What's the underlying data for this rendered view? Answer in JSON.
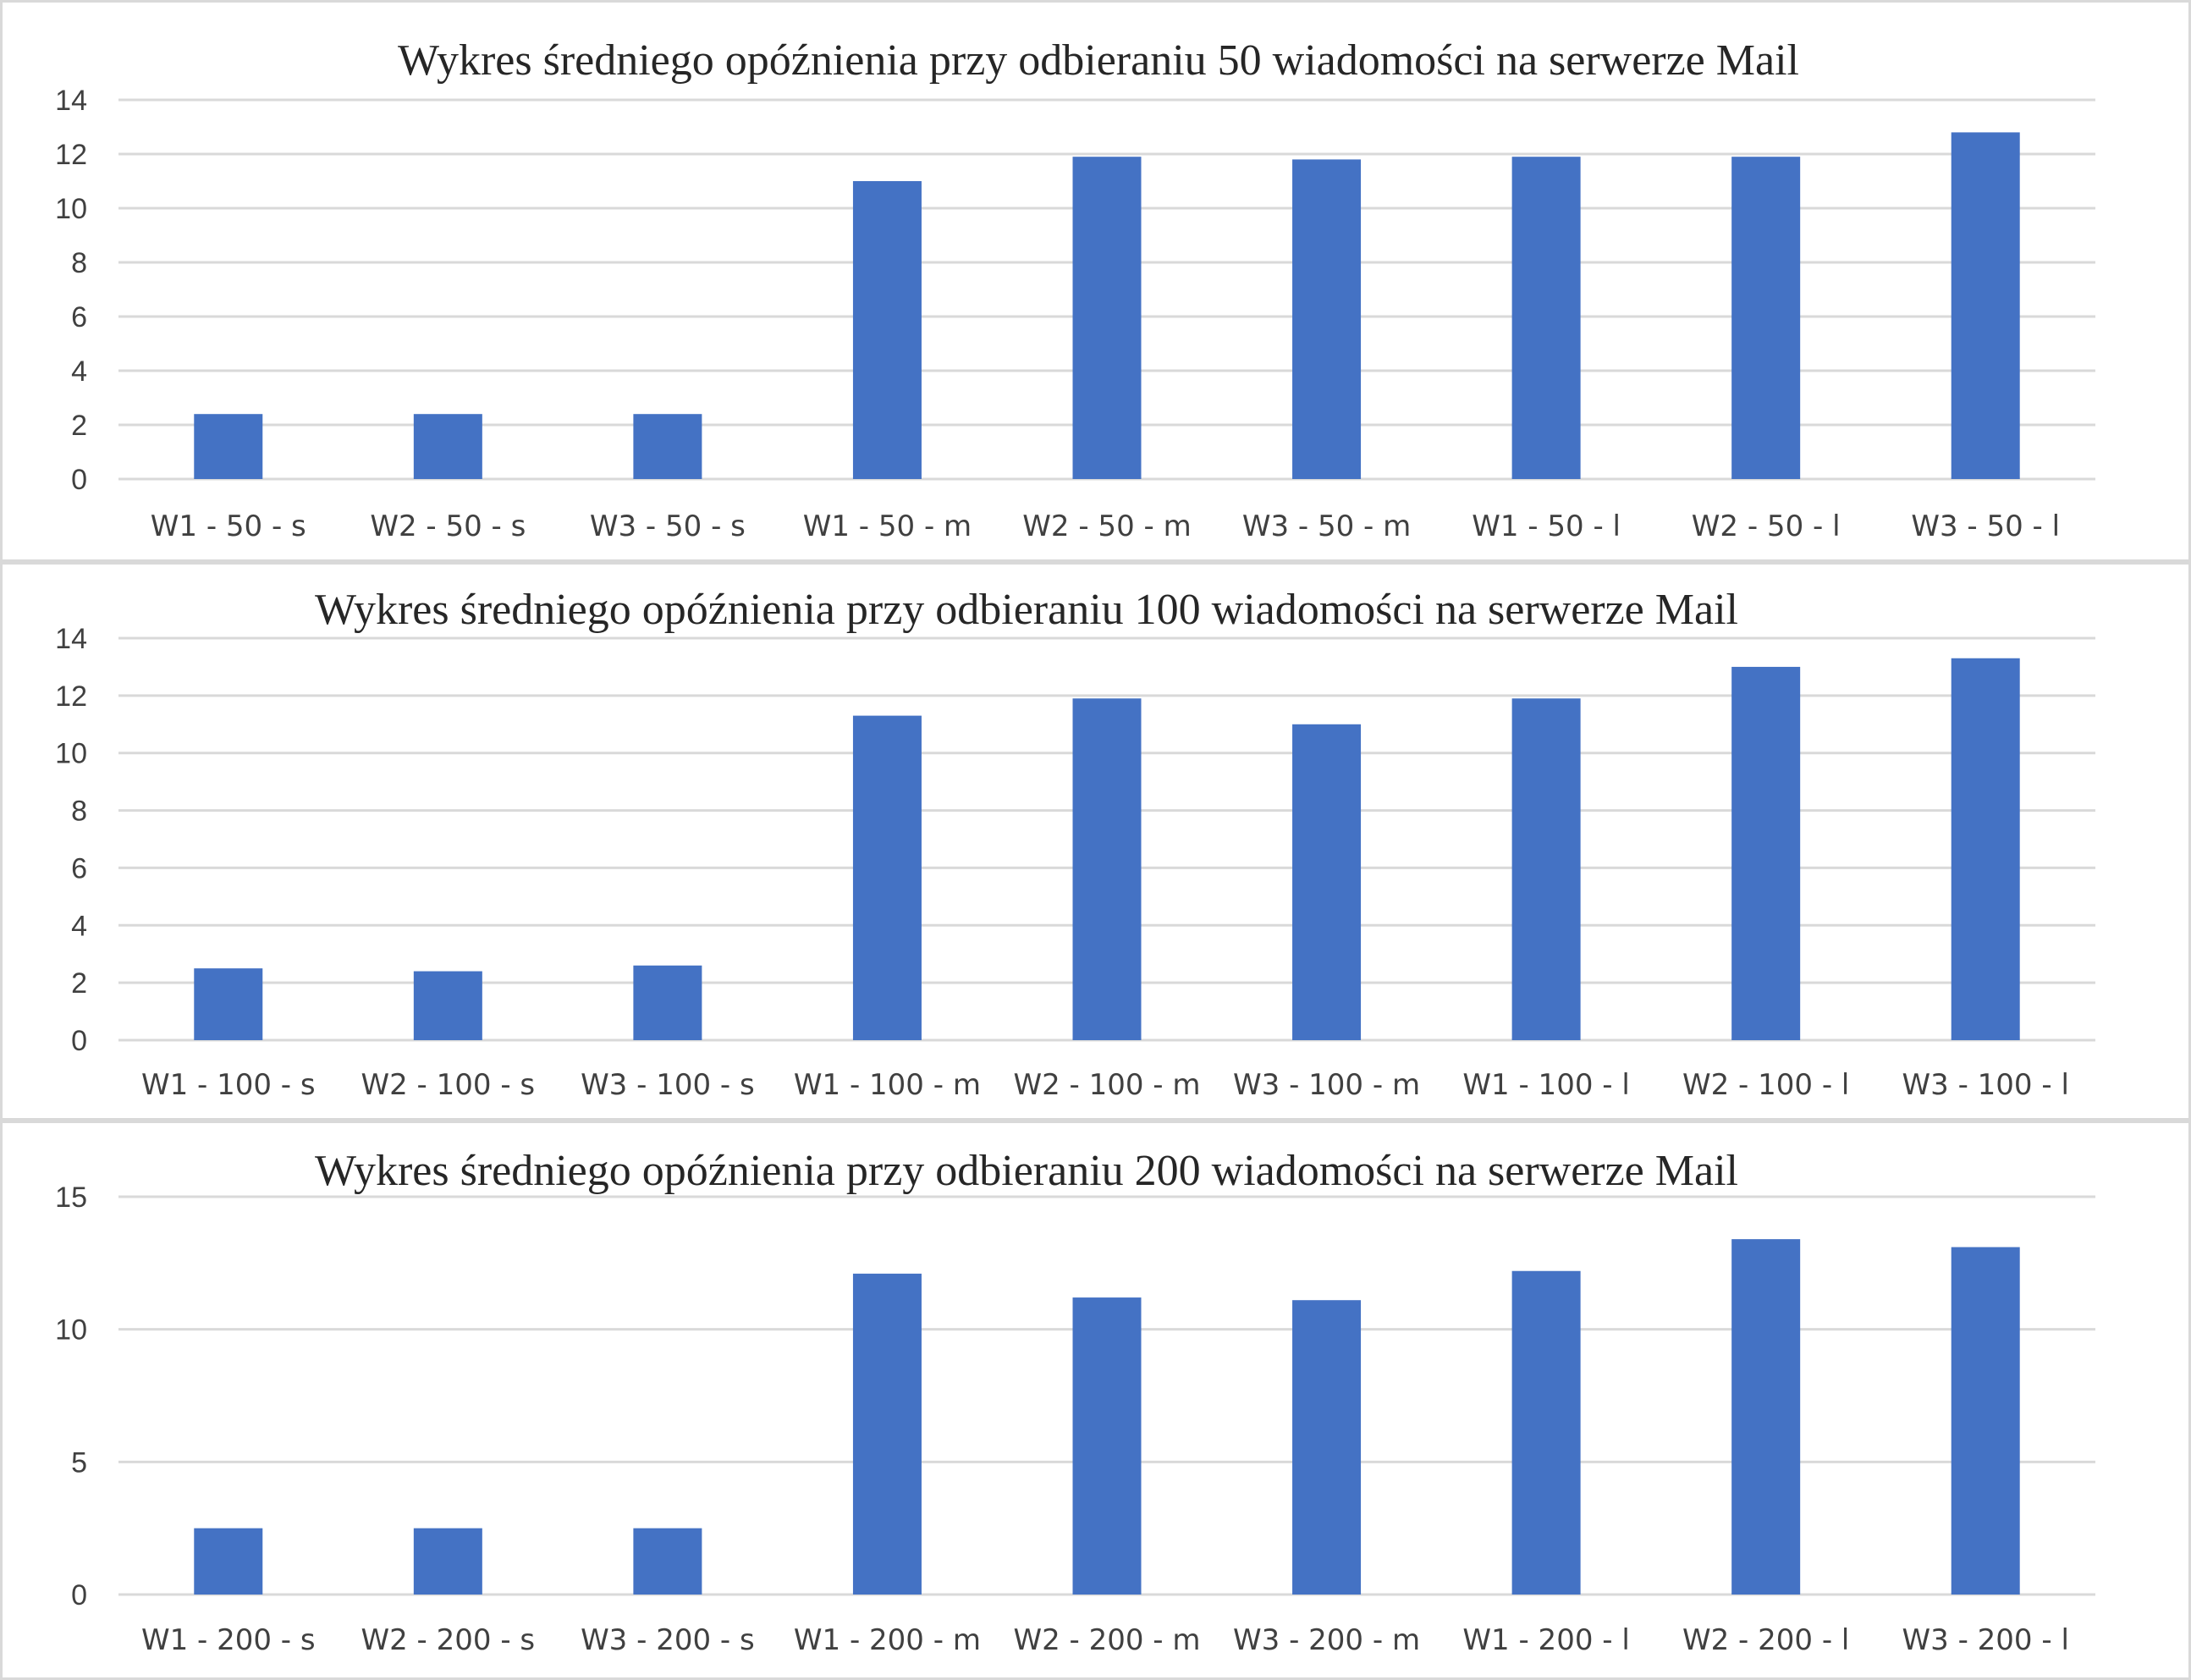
{
  "chart_data": [
    {
      "type": "bar",
      "title": "Wykres średniego opóźnienia przy odbieraniu 50 wiadomości na serwerze Mail",
      "categories": [
        "W1 - 50 - s",
        "W2 - 50 - s",
        "W3 - 50 - s",
        "W1 - 50 - m",
        "W2 - 50 - m",
        "W3 - 50 - m",
        "W1 - 50 - l",
        "W2 - 50 - l",
        "W3 - 50 - l"
      ],
      "values": [
        2.4,
        2.4,
        2.4,
        11.0,
        11.9,
        11.8,
        11.9,
        11.9,
        12.8
      ],
      "yticks": [
        "0",
        "2",
        "4",
        "6",
        "8",
        "10",
        "12",
        "14"
      ],
      "ylim": [
        0,
        14
      ],
      "grid": true,
      "color": "#4472c4"
    },
    {
      "type": "bar",
      "title": "Wykres średniego opóźnienia przy odbieraniu 100 wiadomości na serwerze Mail",
      "categories": [
        "W1 - 100 - s",
        "W2 - 100 - s",
        "W3 - 100 - s",
        "W1 - 100 - m",
        "W2 - 100 - m",
        "W3 - 100 - m",
        "W1 - 100 - l",
        "W2 - 100 - l",
        "W3 - 100 - l"
      ],
      "values": [
        2.5,
        2.4,
        2.6,
        11.3,
        11.9,
        11.0,
        11.9,
        13.0,
        13.3
      ],
      "yticks": [
        "0",
        "2",
        "4",
        "6",
        "8",
        "10",
        "12",
        "14"
      ],
      "ylim": [
        0,
        14
      ],
      "grid": true,
      "color": "#4472c4"
    },
    {
      "type": "bar",
      "title": "Wykres średniego opóźnienia przy odbieraniu 200 wiadomości na serwerze Mail",
      "categories": [
        "W1 - 200 - s",
        "W2 - 200 - s",
        "W3 - 200 - s",
        "W1 - 200 - m",
        "W2 - 200 - m",
        "W3 - 200 - m",
        "W1 - 200 - l",
        "W2 - 200 - l",
        "W3 - 200 - l"
      ],
      "values": [
        2.5,
        2.5,
        2.5,
        12.1,
        11.2,
        11.1,
        12.2,
        13.4,
        13.1
      ],
      "yticks": [
        "0",
        "5",
        "10",
        "15"
      ],
      "ylim": [
        0,
        15
      ],
      "grid": true,
      "color": "#4472c4"
    }
  ]
}
